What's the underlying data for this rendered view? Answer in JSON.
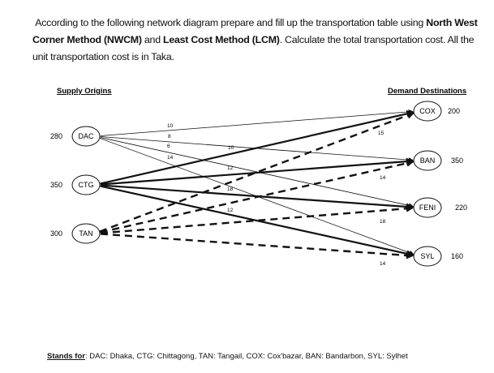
{
  "problem": {
    "p1": "According to the following network diagram prepare and fill up the transportation table using ",
    "b1": "North West Corner Method (NWCM)",
    "p2": " and ",
    "b2": "Least Cost Method (LCM)",
    "p3": ". Calculate the total transportation cost. All the unit transportation cost is in Taka."
  },
  "headers": {
    "supply": "Supply Origins",
    "demand": "Demand Destinations"
  },
  "supply_nodes": [
    {
      "id": "DAC",
      "label": "DAC",
      "qty": "280"
    },
    {
      "id": "CTG",
      "label": "CTG",
      "qty": "350"
    },
    {
      "id": "TAN",
      "label": "TAN",
      "qty": "300"
    }
  ],
  "demand_nodes": [
    {
      "id": "COX",
      "label": "COX",
      "qty": "200"
    },
    {
      "id": "BAN",
      "label": "BAN",
      "qty": "350"
    },
    {
      "id": "FENI",
      "label": "FENI",
      "qty": "220"
    },
    {
      "id": "SYL",
      "label": "SYL",
      "qty": "160"
    }
  ],
  "edges": [
    {
      "from": "DAC",
      "to": "COX",
      "cost": "10",
      "style": "thin"
    },
    {
      "from": "DAC",
      "to": "BAN",
      "cost": "8",
      "style": "thin"
    },
    {
      "from": "DAC",
      "to": "FENI",
      "cost": "6",
      "style": "thin"
    },
    {
      "from": "DAC",
      "to": "SYL",
      "cost": "14",
      "style": "thin"
    },
    {
      "from": "CTG",
      "to": "COX",
      "cost": "10",
      "style": "bold"
    },
    {
      "from": "CTG",
      "to": "BAN",
      "cost": "12",
      "style": "bold"
    },
    {
      "from": "CTG",
      "to": "FENI",
      "cost": "18",
      "style": "bold"
    },
    {
      "from": "CTG",
      "to": "SYL",
      "cost": "12",
      "style": "bold"
    },
    {
      "from": "TAN",
      "to": "COX",
      "cost": "15",
      "style": "dashed"
    },
    {
      "from": "TAN",
      "to": "BAN",
      "cost": "14",
      "style": "dashed"
    },
    {
      "from": "TAN",
      "to": "FENI",
      "cost": "18",
      "style": "dashed"
    },
    {
      "from": "TAN",
      "to": "SYL",
      "cost": "14",
      "style": "dashed"
    }
  ],
  "legend": {
    "label": "Stands for",
    "text": ": DAC: Dhaka, CTG: Chittagong, TAN: Tangail, COX: Cox'bazar, BAN: Bandarbon, SYL: Sylhet"
  }
}
